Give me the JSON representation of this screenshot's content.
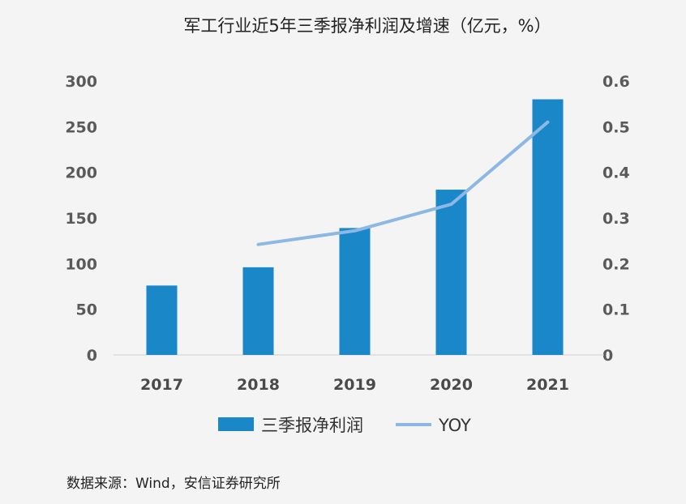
{
  "chart_data": {
    "type": "bar",
    "title": "军工行业近5年三季报净利润及增速（亿元，%）",
    "categories": [
      "2017",
      "2018",
      "2019",
      "2020",
      "2021"
    ],
    "series": [
      {
        "name": "三季报净利润",
        "type": "bar",
        "axis": "left",
        "color": "#1a87c9",
        "values": [
          76,
          96,
          139,
          181,
          280
        ]
      },
      {
        "name": "YOY",
        "type": "line",
        "axis": "right",
        "color": "#8db8e3",
        "values": [
          null,
          0.242,
          0.272,
          0.33,
          0.51
        ]
      }
    ],
    "ylim": [
      0,
      300
    ],
    "y_ticks": [
      "0",
      "50",
      "100",
      "150",
      "200",
      "250",
      "300"
    ],
    "y2lim": [
      0,
      0.6
    ],
    "y2_ticks": [
      "0",
      "0.1",
      "0.2",
      "0.3",
      "0.4",
      "0.5",
      "0.6"
    ],
    "legend": "bottom",
    "grid": false
  },
  "source": "数据来源：Wind，安信证券研究所"
}
